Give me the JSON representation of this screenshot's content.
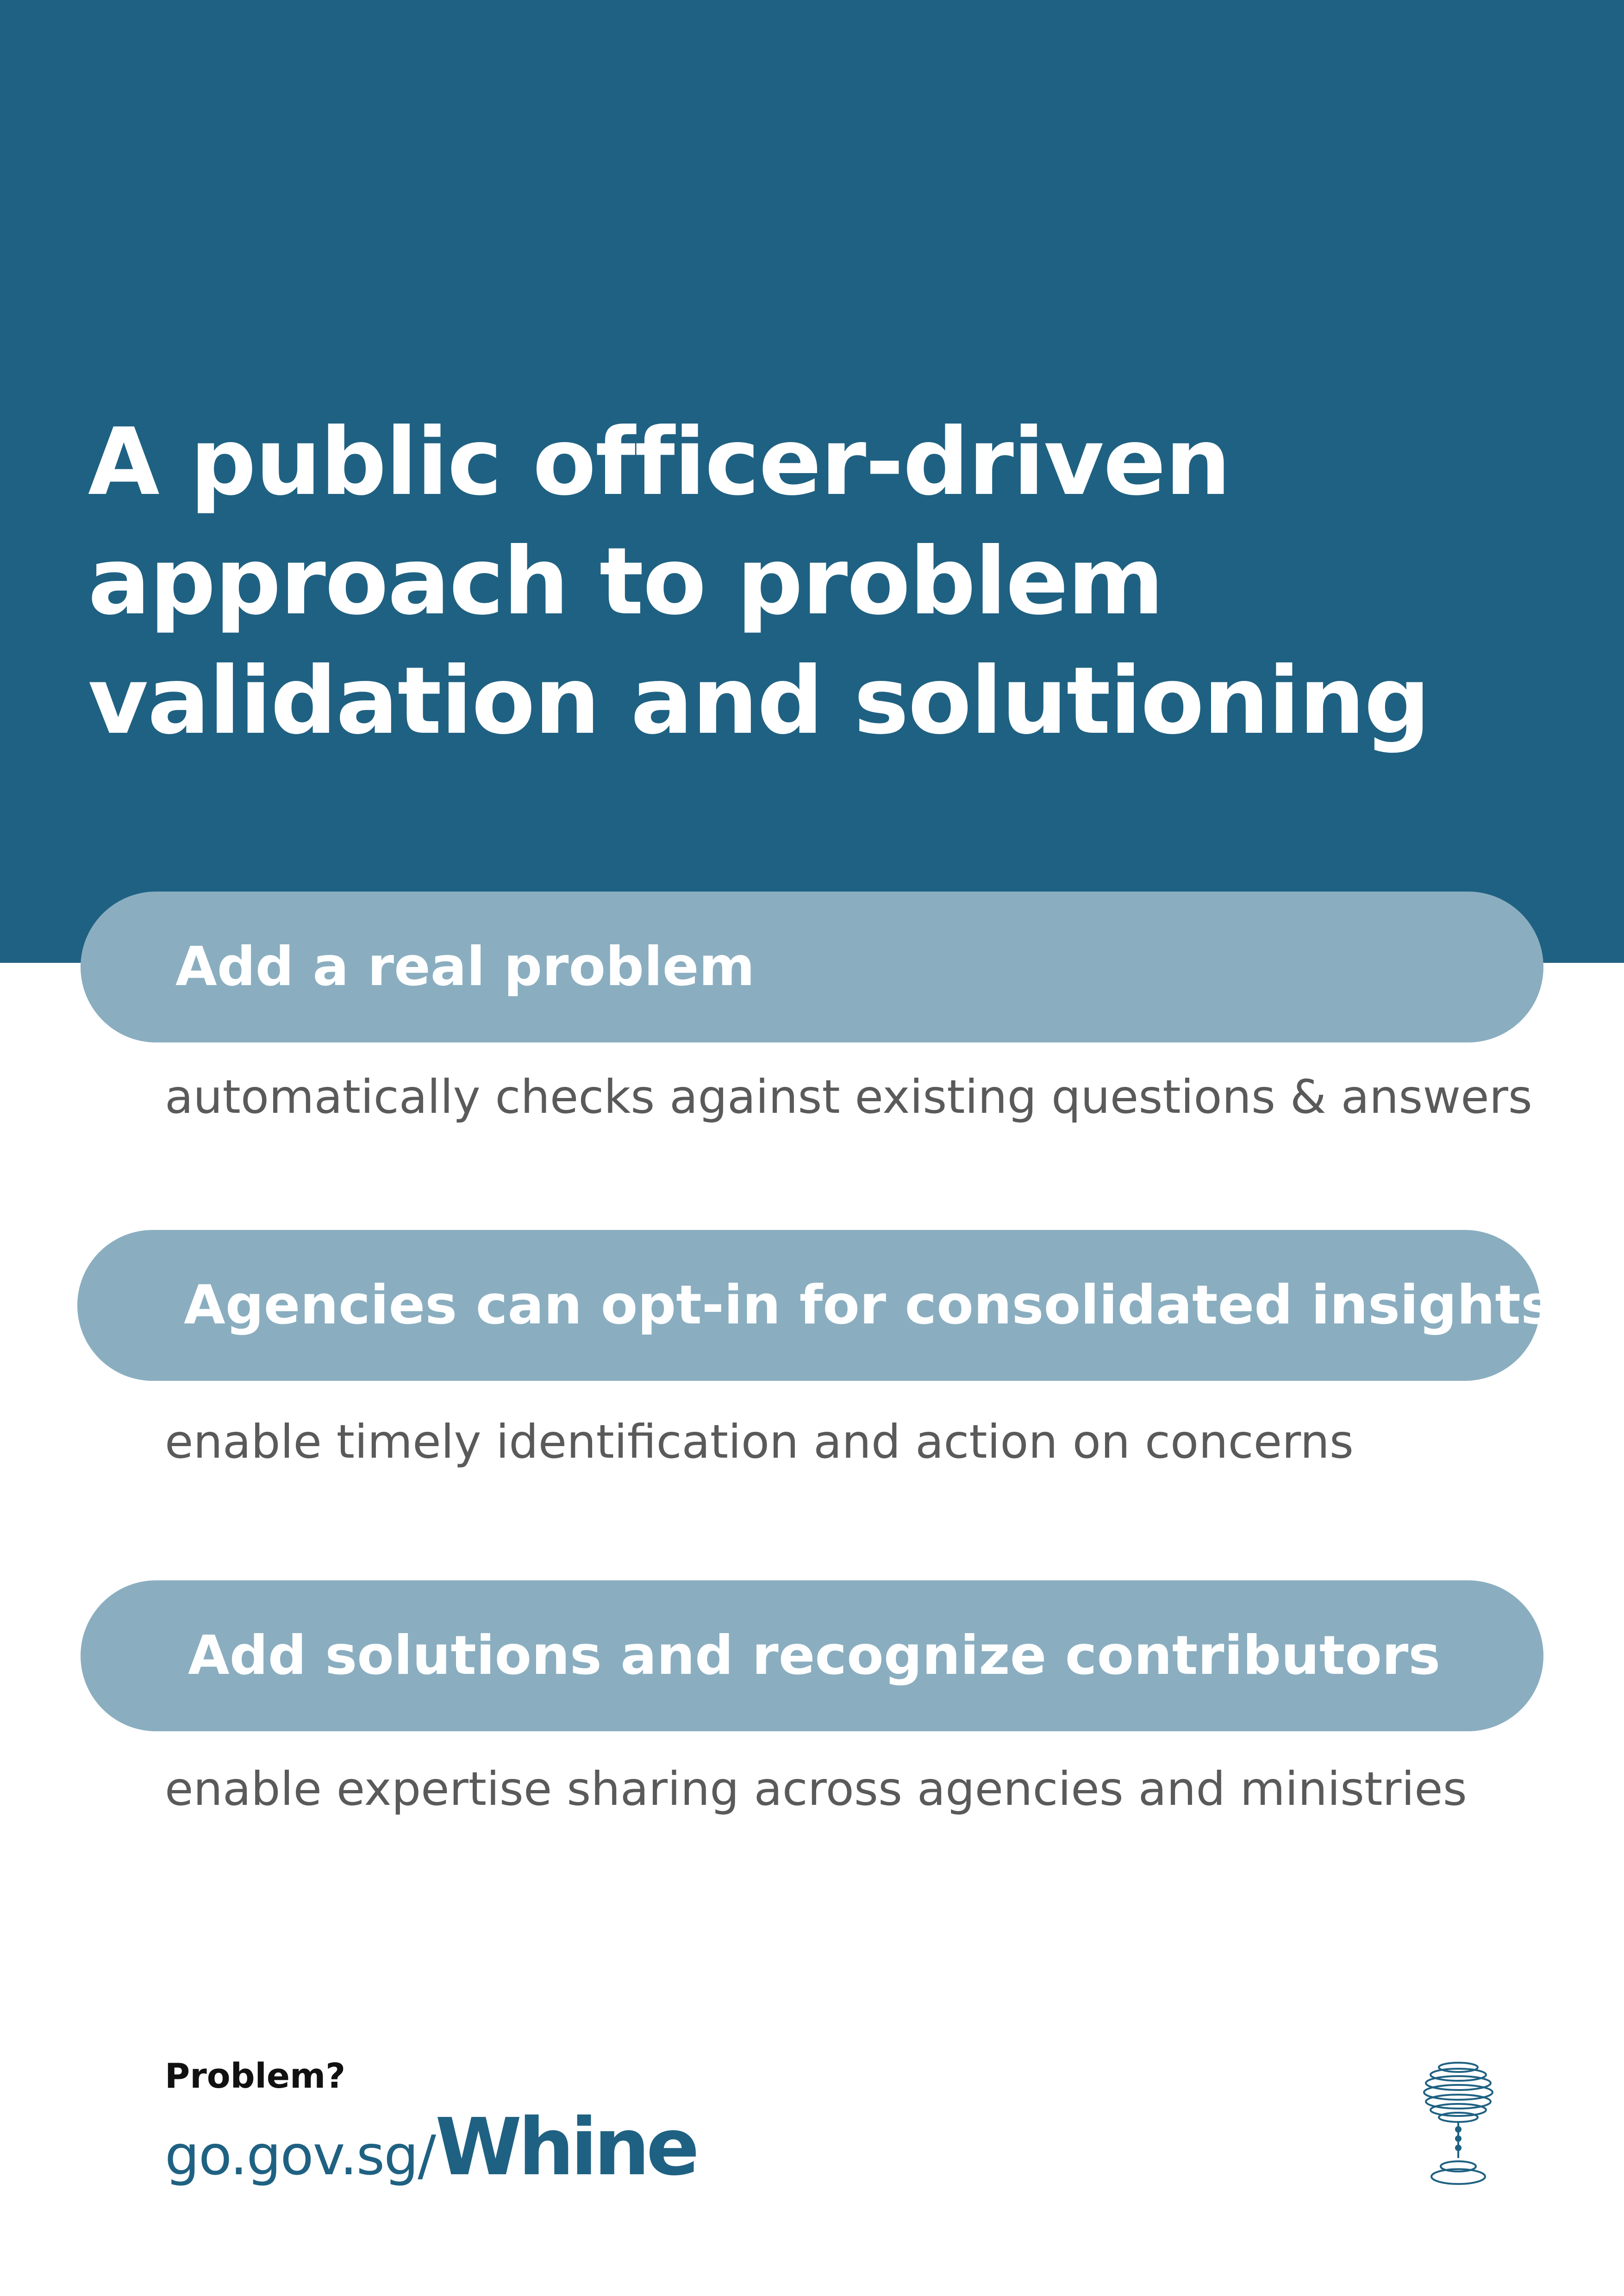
{
  "headline": {
    "lines": [
      "A public officer-driven",
      "approach to problem",
      "validation and solutioning"
    ]
  },
  "features": [
    {
      "title": "Add a real problem",
      "description": "automatically checks against existing questions & answers"
    },
    {
      "title": "Agencies can opt-in for consolidated insights",
      "description": "enable timely identification and action on concerns"
    },
    {
      "title": "Add solutions and recognize contributors",
      "description": "enable expertise sharing  across agencies and ministries"
    }
  ],
  "footer": {
    "question": "Problem?",
    "url_prefix": "go.gov.sg/",
    "url_brand": "Whine"
  },
  "colors": {
    "primary": "#1f6182",
    "pill": "#8aaec0",
    "description_text": "#5a5a5a"
  },
  "icons": {
    "logo": "wine-glass-logo-icon"
  }
}
